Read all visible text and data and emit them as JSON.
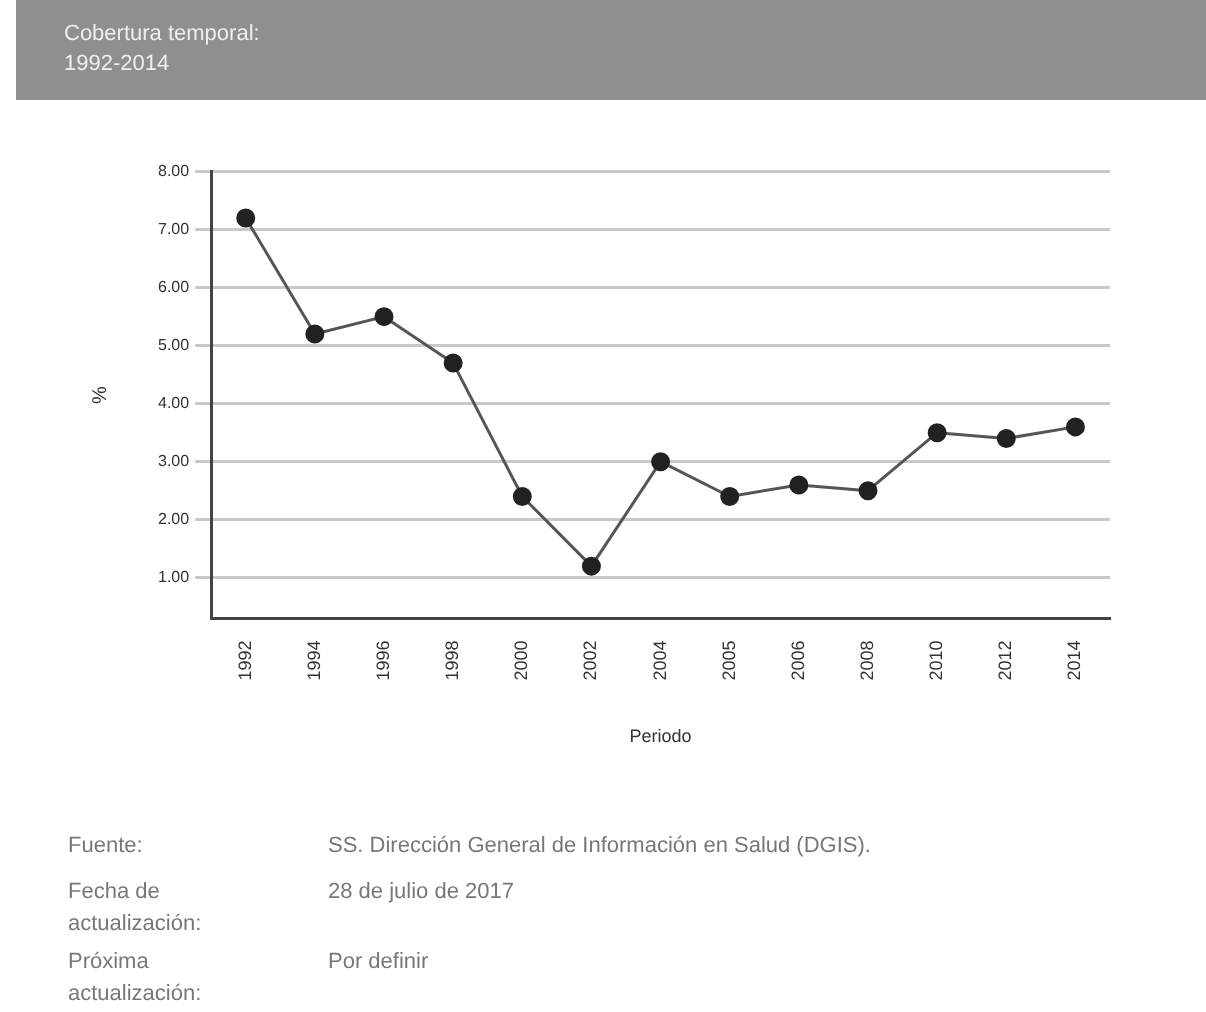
{
  "chart_data": {
    "type": "line",
    "xlabel": "Periodo",
    "ylabel": "%",
    "categories": [
      "1992",
      "1994",
      "1996",
      "1998",
      "2000",
      "2002",
      "2004",
      "2005",
      "2006",
      "2008",
      "2010",
      "2012",
      "2014"
    ],
    "series": [
      {
        "color": "#555555",
        "values": [
          7.2,
          5.2,
          5.5,
          4.7,
          2.4,
          1.2,
          3.0,
          2.4,
          2.6,
          2.5,
          3.5,
          3.4,
          3.6
        ]
      }
    ],
    "ylim": [
      0.3,
      8.0
    ],
    "yticks": [
      {
        "value": 1,
        "label": "1.00"
      },
      {
        "value": 2,
        "label": "2.00"
      },
      {
        "value": 3,
        "label": "3.00"
      },
      {
        "value": 4,
        "label": "4.00"
      },
      {
        "value": 5,
        "label": "5.00"
      },
      {
        "value": 6,
        "label": "6.00"
      },
      {
        "value": 7,
        "label": "7.00"
      },
      {
        "value": 8,
        "label": "8.00"
      }
    ],
    "grid": "y",
    "marker": "circle",
    "line_style": "solid",
    "legend": false,
    "annotations": [
      "Cobertura temporal:",
      "1992-2014",
      "Fuente:",
      "SS. Dirección General de Información en Salud (DGIS).",
      "Fecha de actualización:",
      "28 de julio de 2017",
      "Próxima actualización:",
      "Por definir"
    ]
  }
}
